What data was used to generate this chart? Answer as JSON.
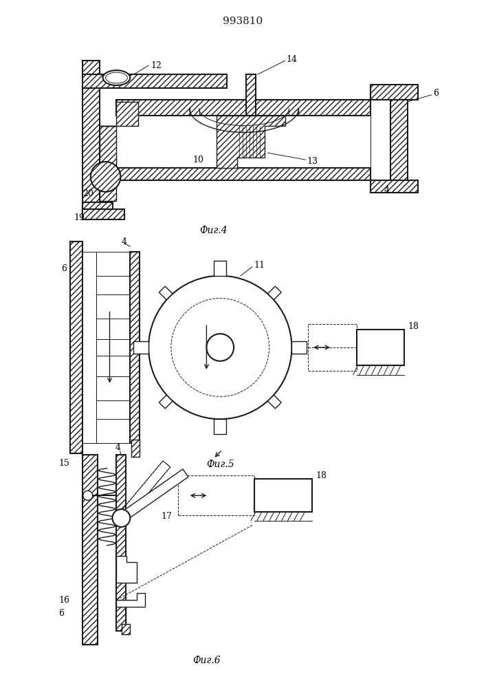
{
  "title": "993810",
  "fig4_label": "Фиг.4",
  "fig5_label": "Фиг.5",
  "fig6_label": "Фиг.6",
  "bg_color": "#ffffff",
  "line_color": "#1a1a1a",
  "title_fontsize": 11,
  "label_fontsize": 10,
  "ann_fontsize": 9
}
